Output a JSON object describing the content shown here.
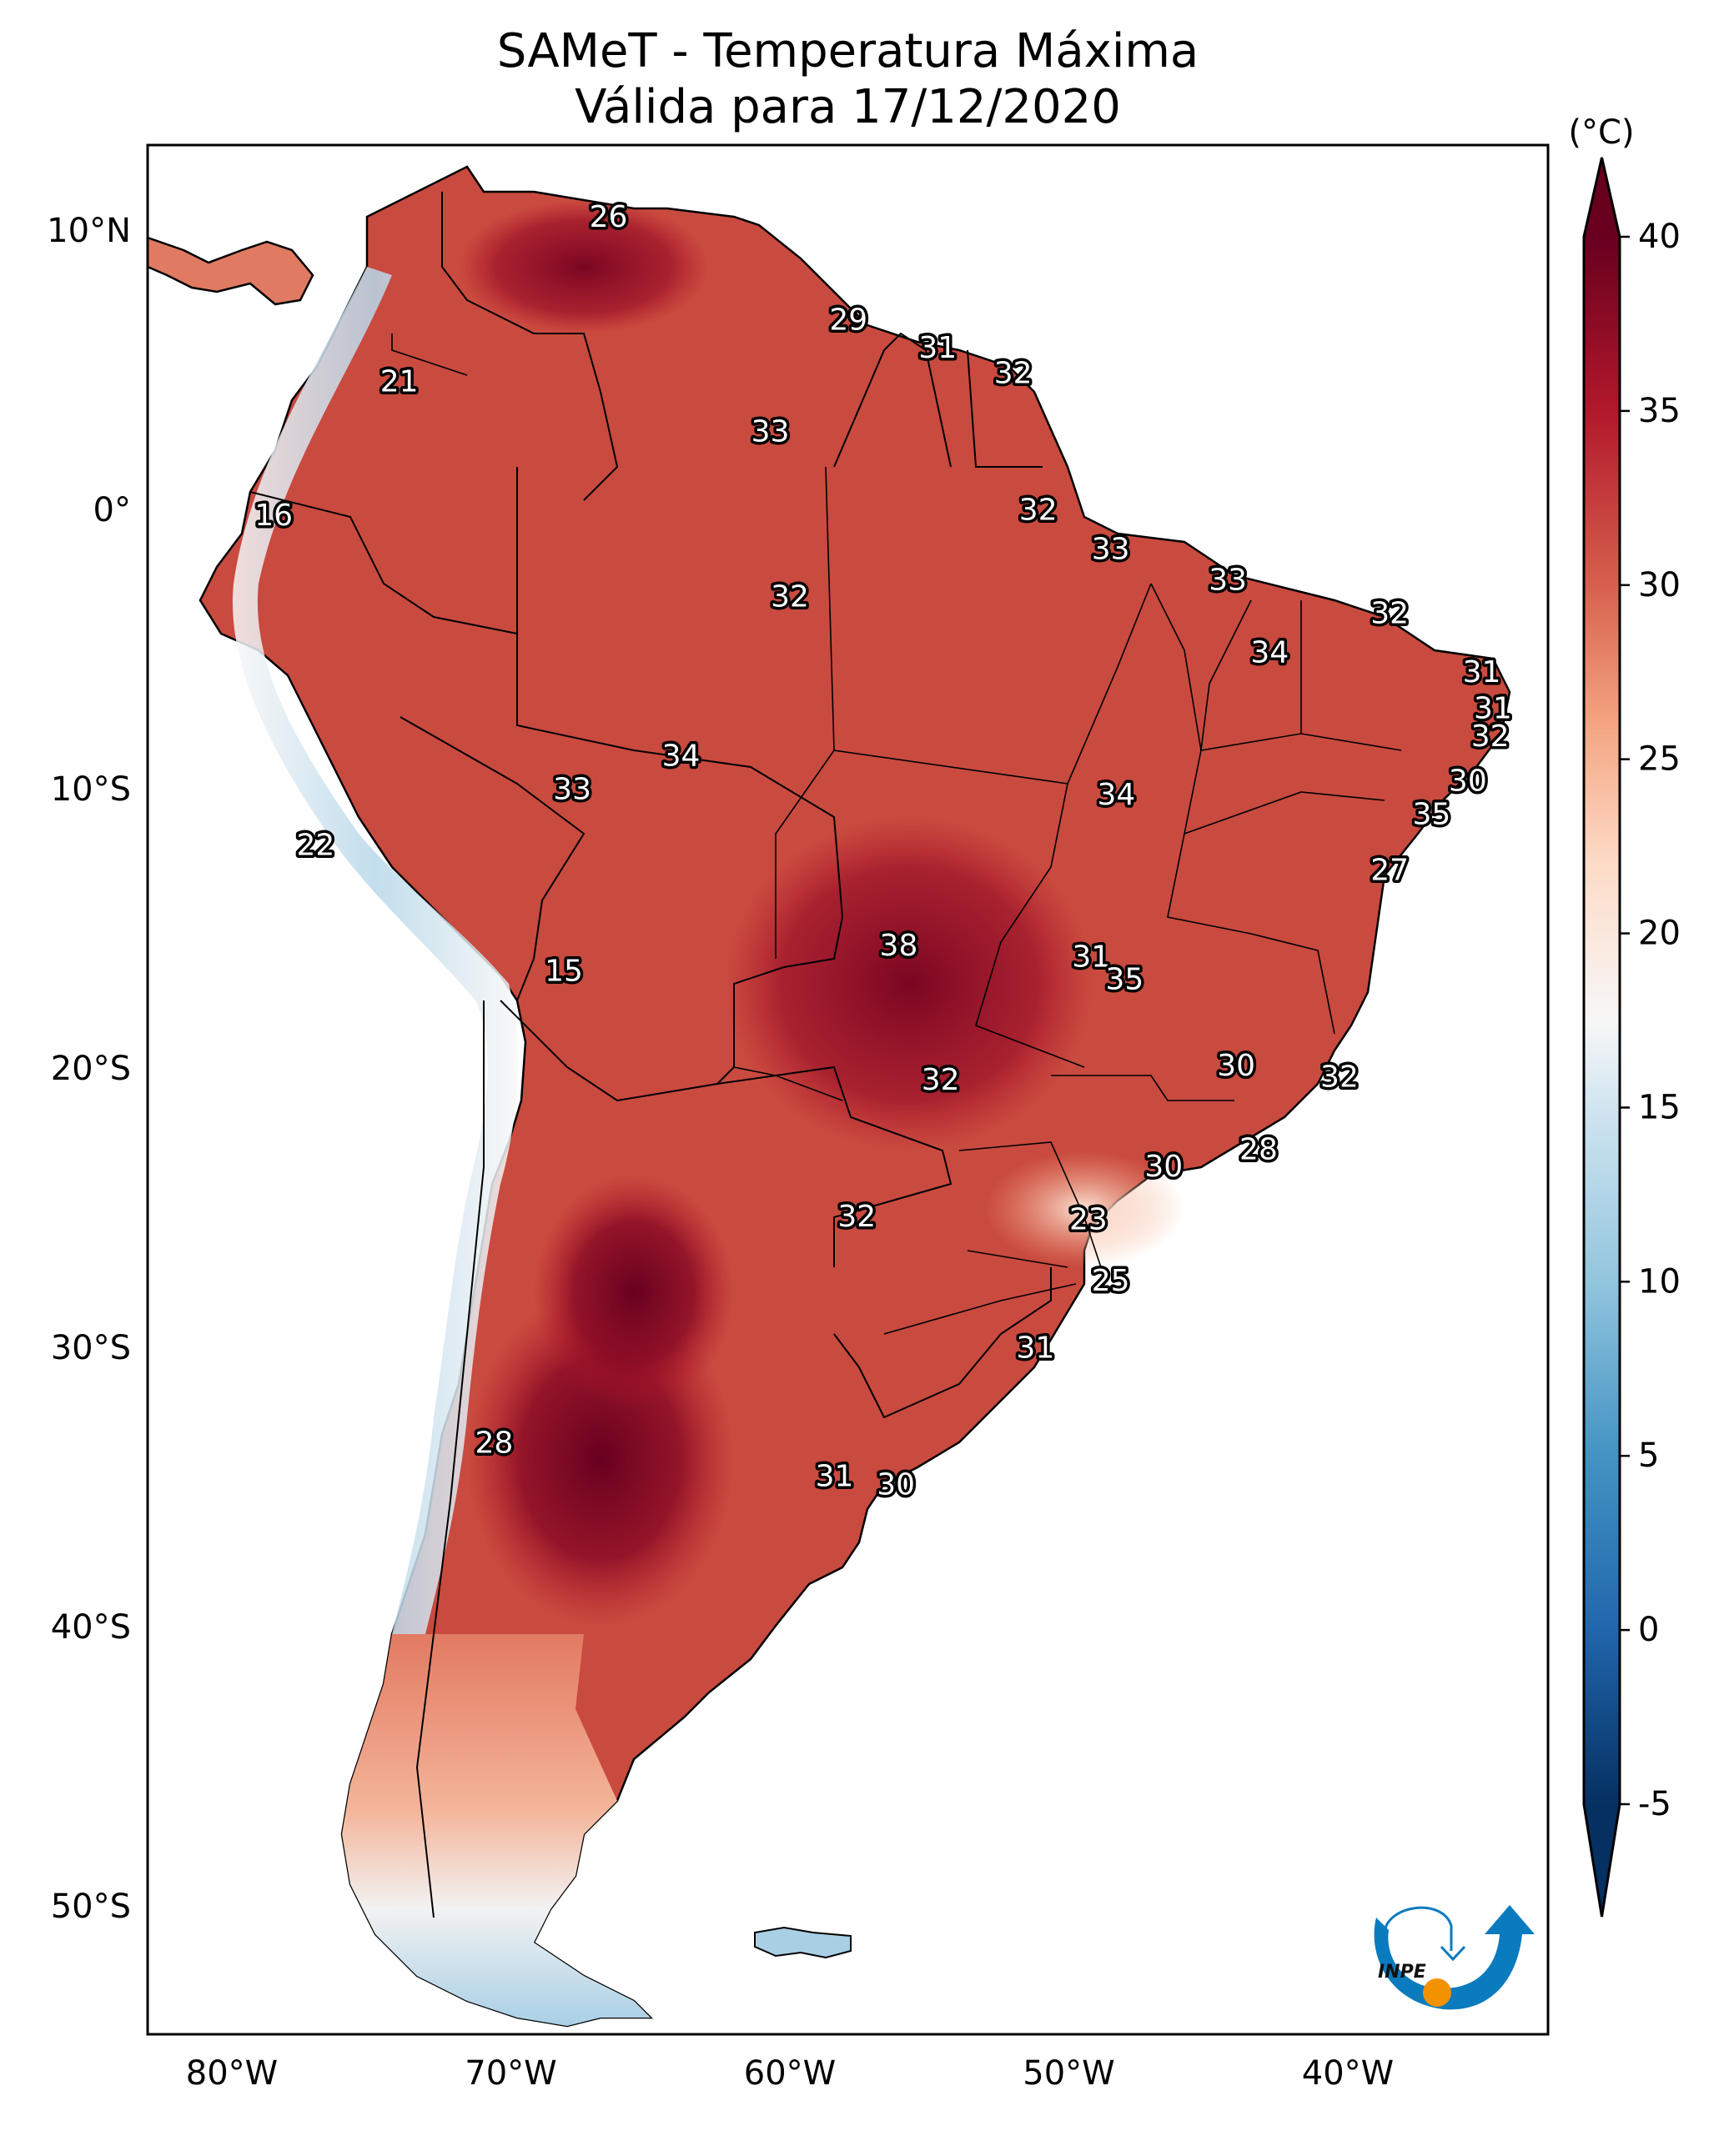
{
  "title": {
    "line1": "SAMeT - Temperatura Máxima",
    "line2": "Válida para 17/12/2020"
  },
  "logo": {
    "text": "INPE",
    "colors": {
      "arrow": "#0a7bbf",
      "sun": "#f39200"
    }
  },
  "chart_data": {
    "type": "heatmap",
    "title": "SAMeT - Temperatura Máxima — Válida para 17/12/2020",
    "variable": "Maximum temperature",
    "units_label": "(°C)",
    "extent": {
      "lon": [
        -83,
        -33
      ],
      "lat": [
        -55.6,
        13
      ]
    },
    "x_ticks": [
      {
        "value": -80,
        "label": "80°W"
      },
      {
        "value": -70,
        "label": "70°W"
      },
      {
        "value": -60,
        "label": "60°W"
      },
      {
        "value": -50,
        "label": "50°W"
      },
      {
        "value": -40,
        "label": "40°W"
      }
    ],
    "y_ticks": [
      {
        "value": 10,
        "label": "10°N"
      },
      {
        "value": 0,
        "label": "0°"
      },
      {
        "value": -10,
        "label": "10°S"
      },
      {
        "value": -20,
        "label": "20°S"
      },
      {
        "value": -30,
        "label": "30°S"
      },
      {
        "value": -40,
        "label": "40°S"
      },
      {
        "value": -50,
        "label": "50°S"
      }
    ],
    "colorbar": {
      "colormap": "RdBu_r",
      "range": [
        -5,
        40
      ],
      "extend": "both",
      "ticks": [
        {
          "value": 40,
          "label": "40"
        },
        {
          "value": 35,
          "label": "35"
        },
        {
          "value": 30,
          "label": "30"
        },
        {
          "value": 25,
          "label": "25"
        },
        {
          "value": 20,
          "label": "20"
        },
        {
          "value": 15,
          "label": "15"
        },
        {
          "value": 10,
          "label": "10"
        },
        {
          "value": 5,
          "label": "5"
        },
        {
          "value": 0,
          "label": "0"
        },
        {
          "value": -5,
          "label": "-5"
        }
      ],
      "stops": [
        {
          "value": -5,
          "color": "#053061"
        },
        {
          "value": 0,
          "color": "#2166ac"
        },
        {
          "value": 5,
          "color": "#4393c3"
        },
        {
          "value": 10,
          "color": "#92c5de"
        },
        {
          "value": 15,
          "color": "#d1e5f0"
        },
        {
          "value": 17.5,
          "color": "#f7f7f7"
        },
        {
          "value": 22,
          "color": "#fddbc7"
        },
        {
          "value": 26,
          "color": "#f4a582"
        },
        {
          "value": 30,
          "color": "#d6604d"
        },
        {
          "value": 35,
          "color": "#b2182b"
        },
        {
          "value": 40,
          "color": "#67001f"
        }
      ]
    },
    "station_labels": [
      {
        "lon": -66.5,
        "lat": 10.5,
        "value": 26
      },
      {
        "lon": -57.9,
        "lat": 6.8,
        "value": 29
      },
      {
        "lon": -54.7,
        "lat": 5.8,
        "value": 31
      },
      {
        "lon": -52.0,
        "lat": 4.9,
        "value": 32
      },
      {
        "lon": -74.0,
        "lat": 4.6,
        "value": 21
      },
      {
        "lon": -60.7,
        "lat": 2.8,
        "value": 33
      },
      {
        "lon": -51.1,
        "lat": 0.0,
        "value": 32
      },
      {
        "lon": -78.5,
        "lat": -0.2,
        "value": 16
      },
      {
        "lon": -48.5,
        "lat": -1.4,
        "value": 33
      },
      {
        "lon": -44.3,
        "lat": -2.5,
        "value": 33
      },
      {
        "lon": -38.5,
        "lat": -3.7,
        "value": 32
      },
      {
        "lon": -60.0,
        "lat": -3.1,
        "value": 32
      },
      {
        "lon": -42.8,
        "lat": -5.1,
        "value": 34
      },
      {
        "lon": -35.2,
        "lat": -5.8,
        "value": 31
      },
      {
        "lon": -34.8,
        "lat": -7.1,
        "value": 31
      },
      {
        "lon": -34.9,
        "lat": -8.1,
        "value": 32
      },
      {
        "lon": -35.7,
        "lat": -9.7,
        "value": 30
      },
      {
        "lon": -37.0,
        "lat": -10.9,
        "value": 35
      },
      {
        "lon": -38.5,
        "lat": -12.9,
        "value": 27
      },
      {
        "lon": -63.9,
        "lat": -8.8,
        "value": 34
      },
      {
        "lon": -67.8,
        "lat": -10.0,
        "value": 33
      },
      {
        "lon": -48.3,
        "lat": -10.2,
        "value": 34
      },
      {
        "lon": -77.0,
        "lat": -12.0,
        "value": 22
      },
      {
        "lon": -68.1,
        "lat": -16.5,
        "value": 15
      },
      {
        "lon": -56.1,
        "lat": -15.6,
        "value": 38
      },
      {
        "lon": -49.2,
        "lat": -16.0,
        "value": 31
      },
      {
        "lon": -48.0,
        "lat": -16.8,
        "value": 35
      },
      {
        "lon": -44.0,
        "lat": -19.9,
        "value": 30
      },
      {
        "lon": -40.3,
        "lat": -20.3,
        "value": 32
      },
      {
        "lon": -54.6,
        "lat": -20.4,
        "value": 32
      },
      {
        "lon": -43.2,
        "lat": -22.9,
        "value": 28
      },
      {
        "lon": -46.6,
        "lat": -23.5,
        "value": 30
      },
      {
        "lon": -49.3,
        "lat": -25.4,
        "value": 23
      },
      {
        "lon": -57.6,
        "lat": -25.3,
        "value": 32
      },
      {
        "lon": -48.5,
        "lat": -27.6,
        "value": 25
      },
      {
        "lon": -51.2,
        "lat": -30.0,
        "value": 31
      },
      {
        "lon": -70.6,
        "lat": -33.4,
        "value": 28
      },
      {
        "lon": -58.4,
        "lat": -34.6,
        "value": 31
      },
      {
        "lon": -56.2,
        "lat": -34.9,
        "value": 30
      }
    ]
  }
}
